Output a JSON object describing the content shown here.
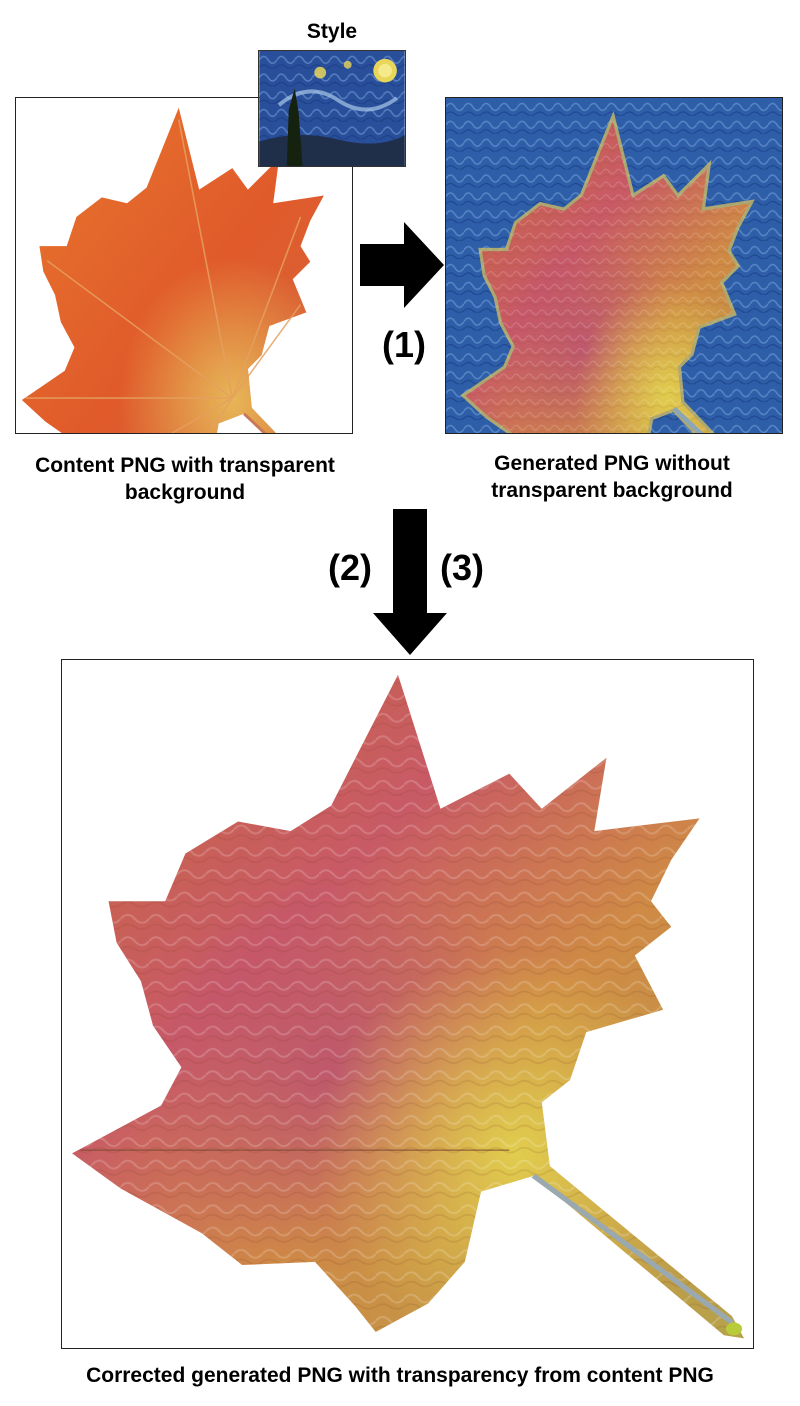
{
  "style_label": "Style",
  "content_caption": "Content PNG with transparent background",
  "generated_caption": "Generated PNG without transparent background",
  "corrected_caption": "Corrected generated PNG with transparency from content PNG",
  "step_labels": {
    "step1": "(1)",
    "step2": "(2)",
    "step3": "(3)"
  },
  "colors": {
    "leaf_orange": "#e2622a",
    "leaf_red": "#c8483a",
    "leaf_gold": "#d6b23e",
    "starry_blue": "#2c5aa8",
    "starry_yellow": "#e8d65a",
    "stylized_pink": "#c85a72",
    "arrow": "#000000"
  }
}
